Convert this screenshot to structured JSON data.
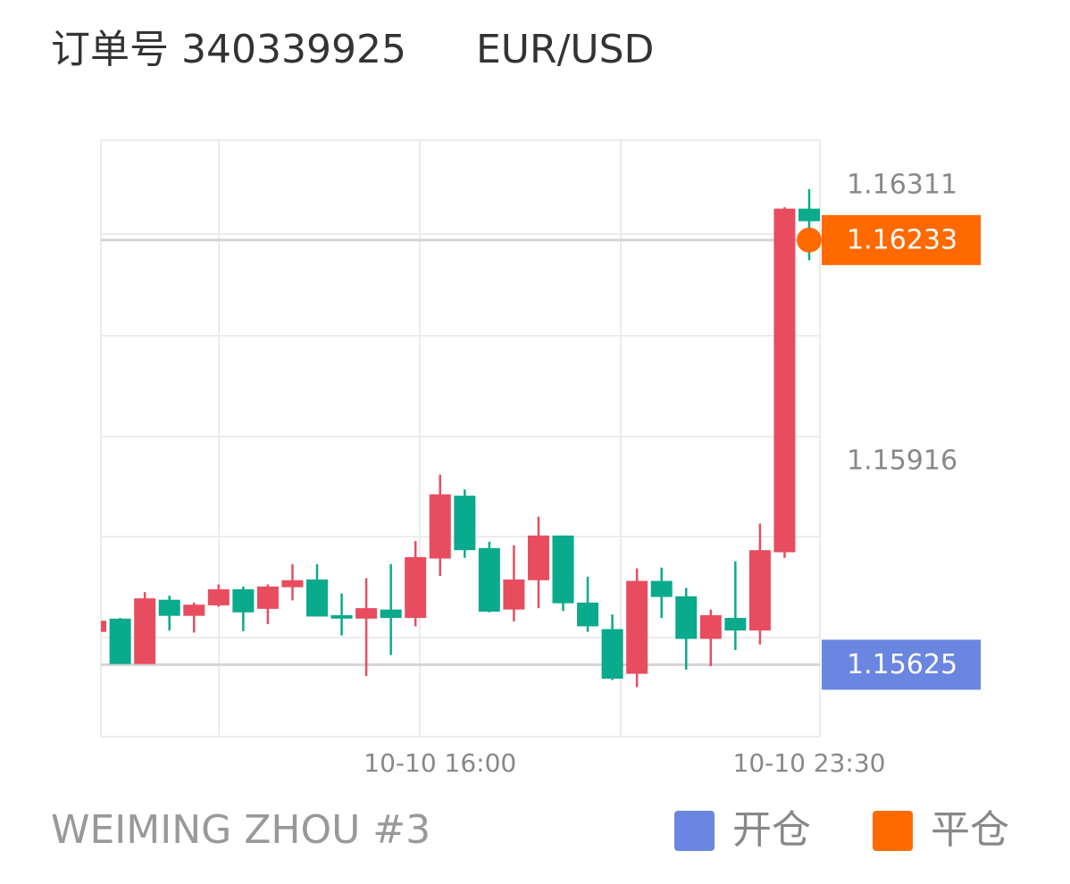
{
  "header": {
    "order": "订单号 340339925",
    "symbol": "EUR/USD"
  },
  "chart_data": {
    "type": "candlestick",
    "categories": [
      null,
      null,
      null,
      null,
      null,
      null,
      null,
      null,
      null,
      null,
      null,
      null,
      null,
      null,
      "10-10 16:00",
      null,
      null,
      null,
      null,
      null,
      null,
      null,
      null,
      null,
      null,
      null,
      null,
      null,
      null,
      "10-10 23:30"
    ],
    "open": [
      1.15672,
      1.15691,
      1.15626,
      1.15718,
      1.15695,
      1.1571,
      1.15733,
      1.15705,
      1.15736,
      1.15747,
      1.15696,
      1.15691,
      1.15704,
      1.15692,
      1.15777,
      1.15867,
      1.15792,
      1.15704,
      1.15746,
      1.1581,
      1.15714,
      1.15676,
      1.15612,
      1.15745,
      1.15723,
      1.15662,
      1.15692,
      1.15674,
      1.15786,
      1.16278
    ],
    "high": [
      1.15688,
      1.15692,
      1.15729,
      1.15724,
      1.15714,
      1.1574,
      1.15737,
      1.1574,
      1.15769,
      1.15769,
      1.15727,
      1.15749,
      1.15769,
      1.15802,
      1.15897,
      1.15876,
      1.15801,
      1.15796,
      1.15837,
      1.1581,
      1.15751,
      1.15697,
      1.15763,
      1.15764,
      1.15735,
      1.15704,
      1.15773,
      1.15827,
      1.1628,
      1.16306
    ],
    "low": [
      1.15672,
      1.15626,
      1.15626,
      1.15674,
      1.15671,
      1.15708,
      1.15673,
      1.15683,
      1.15717,
      1.15694,
      1.15667,
      1.15609,
      1.15639,
      1.1568,
      1.15752,
      1.15778,
      1.157,
      1.15687,
      1.15706,
      1.15702,
      1.15672,
      1.15603,
      1.15593,
      1.15692,
      1.15618,
      1.15623,
      1.15646,
      1.15654,
      1.15778,
      1.16204
    ],
    "close": [
      1.15688,
      1.15626,
      1.1572,
      1.15695,
      1.15711,
      1.15733,
      1.157,
      1.15737,
      1.15746,
      1.15694,
      1.15691,
      1.15706,
      1.15692,
      1.15779,
      1.15869,
      1.15789,
      1.15701,
      1.15747,
      1.1581,
      1.15713,
      1.1568,
      1.15605,
      1.15745,
      1.15722,
      1.15662,
      1.15696,
      1.15674,
      1.15789,
      1.16278,
      1.1626
    ],
    "up_color": "#e84d5f",
    "down_color": "#0aaa8c",
    "ylim": [
      1.15522,
      1.16376
    ],
    "yticks": [
      1.16311,
      1.15916
    ],
    "markers": [
      {
        "name": "开仓",
        "value": 1.15625,
        "color": "#6b86e0"
      },
      {
        "name": "平仓",
        "value": 1.16233,
        "color": "#ff6a00",
        "at": 29
      }
    ]
  },
  "footer": {
    "account": "WEIMING ZHOU #3"
  }
}
